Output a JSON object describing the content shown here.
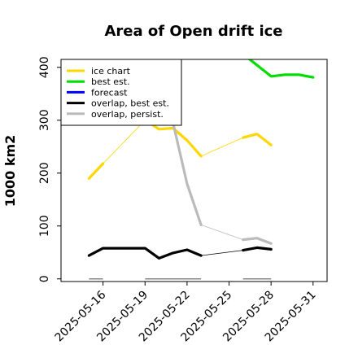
{
  "chart_data": {
    "type": "line",
    "title": "Area of Open drift ice",
    "ylabel": "1000 km2",
    "xlabel": "",
    "ylim": [
      -5,
      415
    ],
    "xlim": [
      "2025-05-13",
      "2025-06-01"
    ],
    "yticks": [
      0,
      100,
      200,
      300,
      400
    ],
    "xticks": [
      {
        "label": "2025-05-16",
        "color": "#000000"
      },
      {
        "label": "2025-05-19",
        "color": "#000000"
      },
      {
        "label": "2025-05-22",
        "color": "#1a7a1a"
      },
      {
        "label": "2025-05-25",
        "color": "#000000"
      },
      {
        "label": "2025-05-28",
        "color": "#000000"
      },
      {
        "label": "2025-05-31",
        "color": "#000000"
      }
    ],
    "grid": false,
    "legend_position": "top-left",
    "series": [
      {
        "name": "ice chart",
        "color": "#ffd700",
        "segments": [
          {
            "x": [
              "2025-05-15",
              "2025-05-16"
            ],
            "y": [
              190,
              218
            ]
          },
          {
            "x": [
              "2025-05-19",
              "2025-05-20",
              "2025-05-21",
              "2025-05-22",
              "2025-05-23"
            ],
            "y": [
              300,
              283,
              285,
              262,
              232
            ]
          },
          {
            "x": [
              "2025-05-26",
              "2025-05-27",
              "2025-05-28"
            ],
            "y": [
              267,
              274,
              253
            ]
          }
        ],
        "connectors": [
          {
            "x": [
              "2025-05-16",
              "2025-05-19"
            ],
            "y": [
              218,
              300
            ]
          },
          {
            "x": [
              "2025-05-23",
              "2025-05-26"
            ],
            "y": [
              232,
              267
            ]
          }
        ]
      },
      {
        "name": "best est.",
        "color": "#00dd00",
        "segments": [
          {
            "x": [
              "2025-05-26",
              "2025-05-28",
              "2025-05-29",
              "2025-05-30",
              "2025-05-31"
            ],
            "y": [
              425,
              383,
              386,
              386,
              381
            ]
          }
        ],
        "connectors": []
      },
      {
        "name": "forecast",
        "color": "#0000ff",
        "segments": [],
        "connectors": []
      },
      {
        "name": "overlap, best est.",
        "color": "#000000",
        "segments": [
          {
            "x": [
              "2025-05-15",
              "2025-05-16",
              "2025-05-19",
              "2025-05-20",
              "2025-05-21",
              "2025-05-22",
              "2025-05-23"
            ],
            "y": [
              44,
              58,
              58,
              39,
              49,
              55,
              44
            ]
          },
          {
            "x": [
              "2025-05-26",
              "2025-05-27",
              "2025-05-28"
            ],
            "y": [
              54,
              59,
              56
            ]
          }
        ],
        "connectors": [
          {
            "x": [
              "2025-05-23",
              "2025-05-26"
            ],
            "y": [
              44,
              54
            ]
          }
        ]
      },
      {
        "name": "overlap, persist.",
        "color": "#bbbbbb",
        "segments": [
          {
            "x": [
              "2025-05-19",
              "2025-05-21",
              "2025-05-22",
              "2025-05-23"
            ],
            "y": [
              320,
              295,
              180,
              102
            ]
          },
          {
            "x": [
              "2025-05-26",
              "2025-05-27",
              "2025-05-28"
            ],
            "y": [
              74,
              77,
              67
            ]
          }
        ],
        "connectors": [
          {
            "x": [
              "2025-05-23",
              "2025-05-26"
            ],
            "y": [
              102,
              74
            ]
          }
        ]
      }
    ],
    "zero_markers": {
      "color": "#888888",
      "segments": [
        {
          "x": [
            "2025-05-15",
            "2025-05-16"
          ],
          "y": [
            0,
            0
          ]
        },
        {
          "x": [
            "2025-05-19",
            "2025-05-23"
          ],
          "y": [
            0,
            0
          ]
        },
        {
          "x": [
            "2025-05-26",
            "2025-05-28"
          ],
          "y": [
            0,
            0
          ]
        }
      ]
    }
  }
}
